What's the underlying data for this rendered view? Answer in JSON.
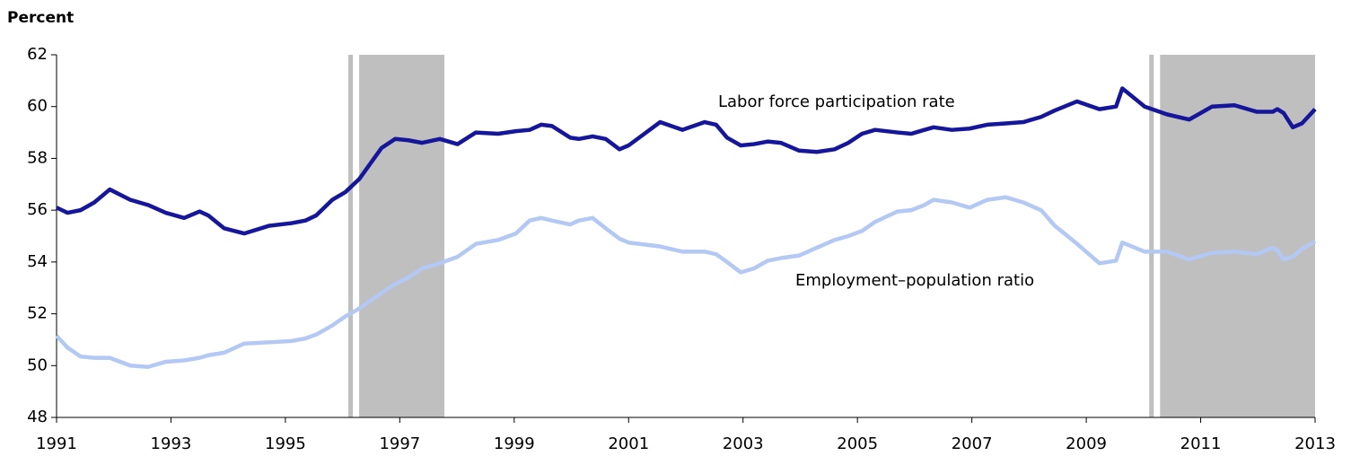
{
  "chart_data": {
    "type": "line",
    "y_axis_label": "Percent",
    "annotations": [
      "Labor force participation rate",
      "Employment–population ratio"
    ],
    "x": [
      1991.0,
      1991.19,
      1991.42,
      1991.66,
      1991.93,
      1992.29,
      1992.6,
      1992.91,
      1993.23,
      1993.5,
      1993.65,
      1993.93,
      1994.28,
      1994.72,
      1995.11,
      1995.35,
      1995.54,
      1995.82,
      1996.05,
      1996.29,
      1996.68,
      1996.92,
      1997.15,
      1997.39,
      1997.7,
      1998.01,
      1998.33,
      1998.72,
      1999.03,
      1999.27,
      1999.47,
      1999.66,
      1999.98,
      2000.13,
      2000.37,
      2000.6,
      2000.84,
      2001.0,
      2001.55,
      2001.94,
      2002.33,
      2002.53,
      2002.72,
      2002.96,
      2003.19,
      2003.43,
      2003.66,
      2003.98,
      2004.29,
      2004.6,
      2004.84,
      2005.08,
      2005.31,
      2005.7,
      2005.94,
      2006.17,
      2006.33,
      2006.65,
      2006.96,
      2007.27,
      2007.59,
      2007.9,
      2008.21,
      2008.45,
      2008.84,
      2009.23,
      2009.52,
      2009.63,
      2010.02,
      2010.41,
      2010.8,
      2011.2,
      2011.59,
      2011.98,
      2012.26,
      2012.34,
      2012.45,
      2012.61,
      2012.77,
      2013.0
    ],
    "series": [
      {
        "name": "Labor force participation rate",
        "color": "#16169a",
        "values": [
          56.1,
          55.9,
          56.0,
          56.3,
          56.8,
          56.4,
          56.2,
          55.9,
          55.7,
          55.95,
          55.8,
          55.3,
          55.1,
          55.4,
          55.5,
          55.6,
          55.8,
          56.4,
          56.7,
          57.2,
          58.4,
          58.75,
          58.7,
          58.6,
          58.75,
          58.55,
          59.0,
          58.95,
          59.05,
          59.1,
          59.3,
          59.25,
          58.8,
          58.75,
          58.85,
          58.75,
          58.35,
          58.5,
          59.4,
          59.1,
          59.4,
          59.3,
          58.8,
          58.5,
          58.55,
          58.65,
          58.6,
          58.3,
          58.25,
          58.35,
          58.6,
          58.95,
          59.1,
          59.0,
          58.95,
          59.1,
          59.2,
          59.1,
          59.15,
          59.3,
          59.35,
          59.4,
          59.6,
          59.85,
          60.2,
          59.9,
          60.0,
          60.7,
          60.0,
          59.7,
          59.5,
          60.0,
          60.05,
          59.8,
          59.8,
          59.9,
          59.75,
          59.2,
          59.35,
          59.9
        ]
      },
      {
        "name": "Employment–population ratio",
        "color": "#b4c8f4",
        "values": [
          51.15,
          50.7,
          50.35,
          50.3,
          50.3,
          50.0,
          49.95,
          50.15,
          50.2,
          50.3,
          50.4,
          50.5,
          50.85,
          50.9,
          50.95,
          51.05,
          51.2,
          51.55,
          51.9,
          52.2,
          52.8,
          53.15,
          53.4,
          53.75,
          53.95,
          54.2,
          54.7,
          54.85,
          55.1,
          55.6,
          55.7,
          55.6,
          55.45,
          55.6,
          55.7,
          55.3,
          54.9,
          54.75,
          54.6,
          54.4,
          54.4,
          54.3,
          54.0,
          53.6,
          53.75,
          54.05,
          54.15,
          54.25,
          54.55,
          54.85,
          55.0,
          55.2,
          55.55,
          55.95,
          56.0,
          56.2,
          56.4,
          56.3,
          56.1,
          56.4,
          56.5,
          56.3,
          56.0,
          55.4,
          54.7,
          53.95,
          54.05,
          54.75,
          54.4,
          54.4,
          54.1,
          54.35,
          54.4,
          54.3,
          54.55,
          54.45,
          54.1,
          54.2,
          54.5,
          54.8
        ]
      }
    ],
    "shaded_ranges": [
      [
        1996.1,
        1996.18
      ],
      [
        1996.29,
        1997.78
      ],
      [
        2010.1,
        2010.18
      ],
      [
        2010.29,
        2013.0
      ]
    ],
    "shade_color": "#bfbfbf",
    "xlim": [
      1991,
      2013
    ],
    "xticks": [
      1991,
      1993,
      1995,
      1997,
      1999,
      2001,
      2003,
      2005,
      2007,
      2009,
      2011,
      2013
    ],
    "ylim": [
      48,
      62
    ],
    "yticks": [
      48,
      50,
      52,
      54,
      56,
      58,
      60,
      62
    ],
    "grid": false
  }
}
